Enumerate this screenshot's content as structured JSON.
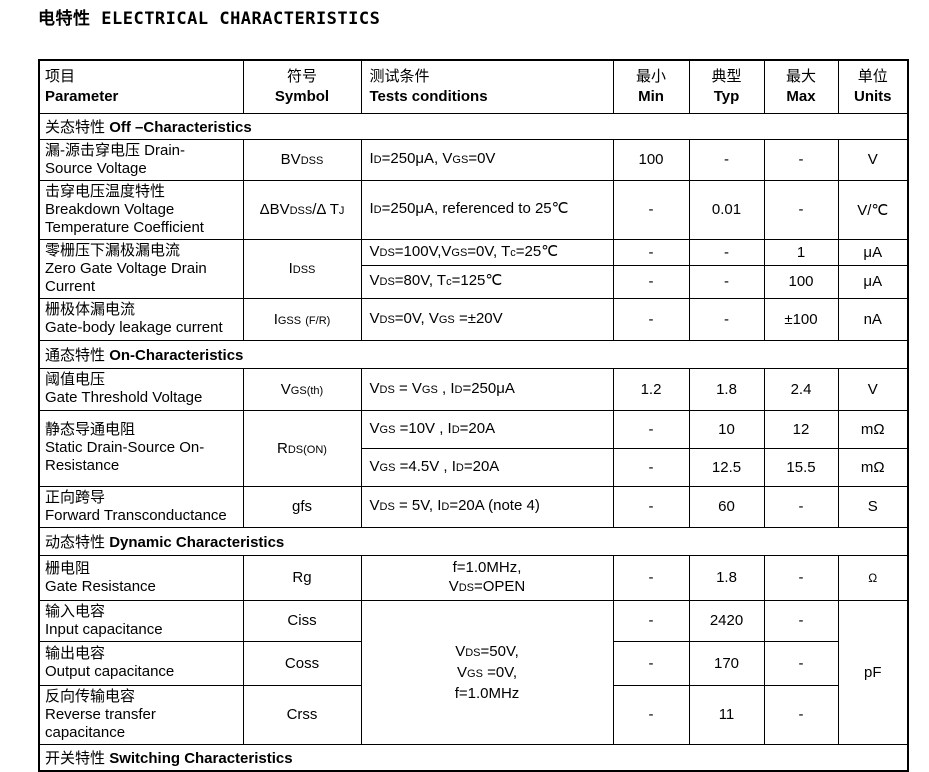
{
  "title": {
    "zh": "电特性",
    "en": "ELECTRICAL CHARACTERISTICS"
  },
  "header": {
    "param_zh": "项目",
    "param_en": "Parameter",
    "symbol_zh": "符号",
    "symbol_en": "Symbol",
    "cond_zh": "测试条件",
    "cond_en": "Tests conditions",
    "min_zh": "最小",
    "min_en": "Min",
    "typ_zh": "典型",
    "typ_en": "Typ",
    "max_zh": "最大",
    "max_en": "Max",
    "units_zh": "单位",
    "units_en": "Units"
  },
  "sections": {
    "off_zh": "关态特性",
    "off_en": "Off –Characteristics",
    "on_zh": "通态特性",
    "on_en": "On-Characteristics",
    "dyn_zh": "动态特性",
    "dyn_en": "Dynamic Characteristics",
    "sw_zh": "开关特性",
    "sw_en": "Switching Characteristics"
  },
  "rows": {
    "bvdss": {
      "param": "漏-源击穿电压 Drain-\nSource Voltage",
      "symbol": "BV~DSS~",
      "cond": "I~D~=250μA, V~GS~=0V",
      "min": "100",
      "typ": "-",
      "max": "-",
      "unit": "V"
    },
    "dbv": {
      "param": "击穿电压温度特性\nBreakdown Voltage\nTemperature Coefficient",
      "symbol": "ΔBV~DSS~/Δ T~J~",
      "cond": "I~D~=250μA, referenced to 25℃",
      "min": "-",
      "typ": "0.01",
      "max": "-",
      "unit": "V/℃"
    },
    "idss": {
      "param": "零栅压下漏极漏电流\n Zero Gate Voltage Drain\nCurrent",
      "symbol": "I~DSS~",
      "sub1": {
        "cond": "V~DS~=100V,V~GS~=0V, T~c~=25℃",
        "min": "-",
        "typ": "-",
        "max": "1",
        "unit": "μA"
      },
      "sub2": {
        "cond": "V~DS~=80V, T~c~=125℃",
        "min": "-",
        "typ": "-",
        "max": "100",
        "unit": "μA"
      }
    },
    "igss": {
      "param": "栅极体漏电流\nGate-body leakage current",
      "symbol": "I~GSS~ ~(F/R)~",
      "cond": "V~DS~=0V, V~GS~ =±20V",
      "min": "-",
      "typ": "-",
      "max": "±100",
      "unit": "nA"
    },
    "vgsth": {
      "param": "阈值电压\nGate Threshold Voltage",
      "symbol": "V~GS(th)~",
      "cond": "V~DS~ = V~GS~ , I~D~=250μA",
      "min": "1.2",
      "typ": "1.8",
      "max": "2.4",
      "unit": "V"
    },
    "rdson": {
      "param": "静态导通电阻\nStatic Drain-Source On-\nResistance",
      "symbol": "R~DS(ON)~",
      "sub1": {
        "cond": "V~GS~ =10V , I~D~=20A",
        "min": "-",
        "typ": "10",
        "max": "12",
        "unit": "mΩ"
      },
      "sub2": {
        "cond": "V~GS~ =4.5V , I~D~=20A",
        "min": "-",
        "typ": "12.5",
        "max": "15.5",
        "unit": "mΩ"
      }
    },
    "gfs": {
      "param": "正向跨导\nForward Transconductance",
      "symbol": "gfs",
      "cond": "V~DS~ = 5V, I~D~=20A (note 4)",
      "min": "-",
      "typ": "60",
      "max": "-",
      "unit": "S"
    },
    "rg": {
      "param": "栅电阻\nGate Resistance",
      "symbol": "Rg",
      "cond": "f=1.0MHz,\nV~DS~=OPEN",
      "min": "-",
      "typ": "1.8",
      "max": "-",
      "unit": "Ω"
    },
    "caps": {
      "cond": "V~DS~=50V,\nV~GS~ =0V,\nf=1.0MHz",
      "unit": "pF",
      "ciss": {
        "param": "输入电容\nInput capacitance",
        "symbol": "Ciss",
        "min": "-",
        "typ": "2420",
        "max": "-"
      },
      "coss": {
        "param": "输出电容\nOutput capacitance",
        "symbol": "Coss",
        "min": "-",
        "typ": "170",
        "max": "-"
      },
      "crss": {
        "param": "反向传输电容\nReverse transfer capacitance",
        "symbol": "Crss",
        "min": "-",
        "typ": "11",
        "max": "-"
      }
    }
  }
}
